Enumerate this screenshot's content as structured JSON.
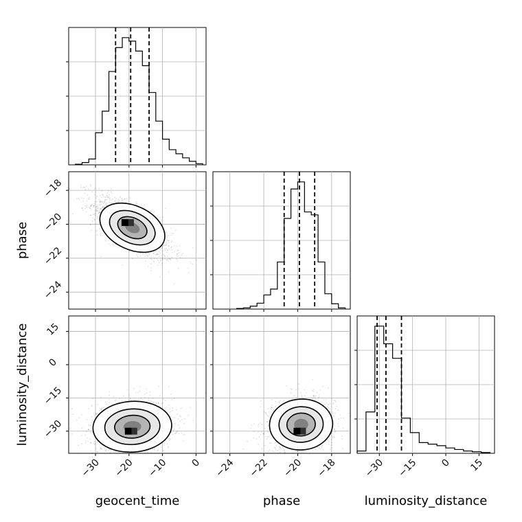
{
  "chart_data": {
    "type": "corner",
    "parameters": [
      "geocent_time",
      "phase",
      "luminosity_distance"
    ],
    "grid": true,
    "ranges": {
      "geocent_time": [
        -38,
        3
      ],
      "phase": [
        -25,
        -16.9
      ],
      "luminosity_distance": [
        -40,
        22
      ]
    },
    "ticks": {
      "geocent_time": [
        -30,
        -20,
        -10,
        0
      ],
      "phase": [
        -24,
        -22,
        -20,
        -18
      ],
      "luminosity_distance": [
        -30,
        -15,
        0,
        15
      ]
    },
    "tick_labels": {
      "geocent_time": [
        "−30",
        "−20",
        "−10",
        "0"
      ],
      "phase": [
        "−24",
        "−22",
        "−20",
        "−18"
      ],
      "luminosity_distance": [
        "−30",
        "−15",
        "0",
        "15"
      ]
    },
    "quantiles": {
      "geocent_time": [
        -24,
        -19.5,
        -14
      ],
      "phase": [
        -20.8,
        -19.9,
        -19.0
      ],
      "luminosity_distance": [
        -31,
        -27,
        -20
      ]
    },
    "histograms": {
      "geocent_time": {
        "bin_edges": [
          -36,
          -34,
          -32,
          -30,
          -28,
          -26,
          -24,
          -22,
          -20,
          -18,
          -16,
          -14,
          -12,
          -10,
          -8,
          -6,
          -4,
          -2,
          0,
          2
        ],
        "counts": [
          1,
          4,
          10,
          55,
          92,
          160,
          201,
          218,
          212,
          195,
          170,
          124,
          75,
          44,
          26,
          19,
          12,
          6,
          2
        ]
      },
      "phase": {
        "bin_edges": [
          -23.6,
          -23.2,
          -22.8,
          -22.4,
          -22.0,
          -21.6,
          -21.2,
          -20.8,
          -20.4,
          -20.0,
          -19.6,
          -19.2,
          -18.8,
          -18.4,
          -18.0,
          -17.6,
          -17.2
        ],
        "counts": [
          1,
          2,
          5,
          10,
          24,
          34,
          80,
          154,
          204,
          216,
          165,
          160,
          80,
          26,
          9,
          2
        ]
      },
      "luminosity_distance": {
        "bin_edges": [
          -40,
          -36,
          -32,
          -28,
          -24,
          -20,
          -16,
          -12,
          -8,
          -4,
          0,
          4,
          8,
          12,
          16,
          20
        ],
        "counts": [
          3,
          54,
          166,
          143,
          124,
          46,
          27,
          14,
          12,
          10,
          7,
          5,
          3,
          2,
          1
        ]
      }
    },
    "joint": [
      {
        "x": "geocent_time",
        "y": "phase",
        "center": [
          -19,
          -20.2
        ],
        "sigma": [
          6,
          0.95
        ],
        "rho": -0.72,
        "peak": [
          -21,
          -19.9
        ]
      },
      {
        "x": "geocent_time",
        "y": "luminosity_distance",
        "center": [
          -19,
          -28
        ],
        "sigma": [
          6,
          6
        ],
        "rho": 0.1,
        "peak": [
          -20,
          -30
        ]
      },
      {
        "x": "phase",
        "y": "luminosity_distance",
        "center": [
          -19.8,
          -27
        ],
        "sigma": [
          0.95,
          6
        ],
        "rho": 0.1,
        "peak": [
          -20,
          -30
        ]
      }
    ]
  }
}
